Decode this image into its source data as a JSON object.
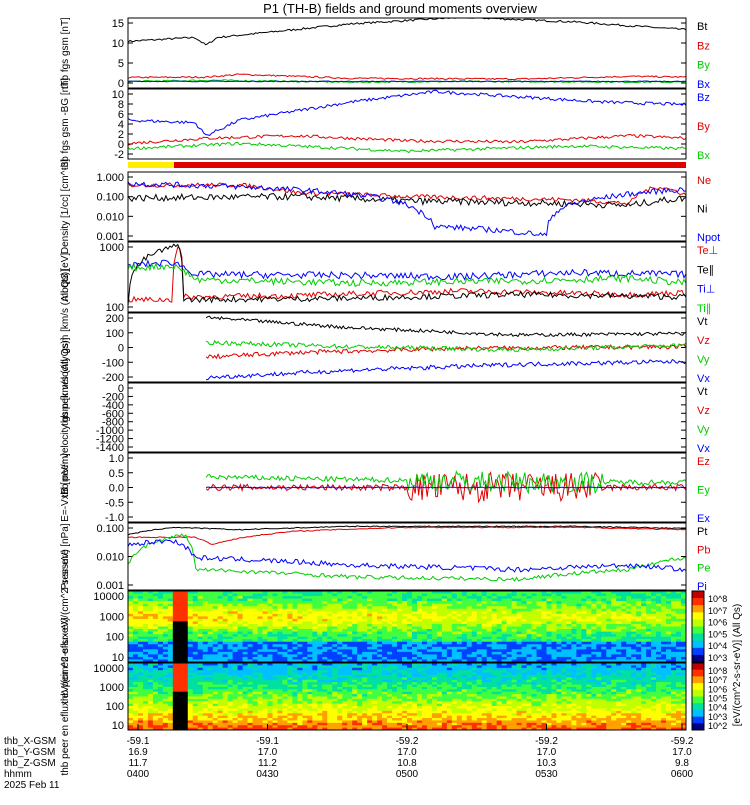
{
  "title": "P1 (TH-B) fields and ground moments overview",
  "colors": {
    "black": "#000000",
    "red": "#e00000",
    "green": "#00cc00",
    "blue": "#0000ff",
    "yellow": "#ffee00"
  },
  "footer": {
    "rows": [
      {
        "label": "thb_X-GSM",
        "values": [
          "-59.1",
          "-59.1",
          "-59.2",
          "-59.2",
          "-59.2"
        ]
      },
      {
        "label": "thb_Y-GSM",
        "values": [
          "16.9",
          "17.0",
          "17.0",
          "17.0",
          "17.0"
        ]
      },
      {
        "label": "thb_Z-GSM",
        "values": [
          "11.7",
          "11.2",
          "10.8",
          "10.3",
          "9.8"
        ]
      },
      {
        "label": "hhmm",
        "values": [
          "0400",
          "0430",
          "0500",
          "0530",
          "0600"
        ]
      }
    ],
    "date": "2025 Feb 11"
  },
  "colorbar": {
    "label": "[eV/(cm^2-s-sr-eV)] (All Qs)",
    "panel1_ticks": [
      "10^8",
      "10^7",
      "10^6",
      "10^5",
      "10^4",
      "10^3"
    ],
    "panel2_ticks": [
      "10^8",
      "10^7",
      "10^6",
      "10^5",
      "10^4",
      "10^3",
      "10^2"
    ]
  },
  "chart_data": [
    {
      "type": "line",
      "ylabel": "thb fgs gsm [nT]",
      "ylim": [
        -2,
        16
      ],
      "yticks": [
        "15",
        "10",
        "5",
        "0"
      ],
      "series": [
        {
          "name": "Bt",
          "color": "#000000",
          "profile": [
            [
              0,
              10
            ],
            [
              0.12,
              11
            ],
            [
              0.14,
              9
            ],
            [
              0.16,
              11
            ],
            [
              0.4,
              14.5
            ],
            [
              0.6,
              16.2
            ],
            [
              0.8,
              15
            ],
            [
              1,
              13
            ]
          ],
          "noise": 0.25
        },
        {
          "name": "Bz",
          "color": "#e00000",
          "profile": [
            [
              0,
              0.7
            ],
            [
              0.14,
              0.8
            ],
            [
              0.2,
              1.5
            ],
            [
              0.4,
              0.5
            ],
            [
              0.7,
              0.3
            ],
            [
              0.9,
              1
            ],
            [
              1,
              0.8
            ]
          ],
          "noise": 0.2
        },
        {
          "name": "By",
          "color": "#00cc00",
          "profile": [
            [
              0,
              -0.3
            ],
            [
              0.15,
              0
            ],
            [
              0.4,
              -0.5
            ],
            [
              0.6,
              -0.3
            ],
            [
              1,
              -0.5
            ]
          ],
          "noise": 0.2
        },
        {
          "name": "Bx",
          "color": "#0000ff",
          "profile": [
            [
              0,
              -0.3
            ],
            [
              1,
              -0.3
            ]
          ],
          "noise": 0.1
        }
      ]
    },
    {
      "type": "line",
      "ylabel": "thb fgs gsm -BG [nT]",
      "ylim": [
        -3,
        10.5
      ],
      "yticks": [
        "10",
        "8",
        "6",
        "4",
        "2",
        "0",
        "-2"
      ],
      "series": [
        {
          "name": "Bz",
          "color": "#0000ff",
          "profile": [
            [
              0,
              4.5
            ],
            [
              0.12,
              4
            ],
            [
              0.14,
              1.5
            ],
            [
              0.2,
              4.5
            ],
            [
              0.4,
              8
            ],
            [
              0.55,
              10
            ],
            [
              0.7,
              9
            ],
            [
              0.85,
              8
            ],
            [
              1,
              7.5
            ]
          ],
          "noise": 0.3
        },
        {
          "name": "By",
          "color": "#e00000",
          "profile": [
            [
              0,
              0
            ],
            [
              0.14,
              1
            ],
            [
              0.3,
              1.5
            ],
            [
              0.5,
              0.5
            ],
            [
              0.7,
              0.3
            ],
            [
              0.9,
              1.5
            ],
            [
              1,
              1
            ]
          ],
          "noise": 0.3
        },
        {
          "name": "Bx",
          "color": "#00cc00",
          "profile": [
            [
              0,
              -1
            ],
            [
              0.2,
              0
            ],
            [
              0.5,
              -1.5
            ],
            [
              0.8,
              -0.5
            ],
            [
              1,
              -1
            ]
          ],
          "noise": 0.3
        }
      ]
    },
    {
      "type": "line",
      "ylabel": "Density [1/cc] [cm^-3]",
      "log": true,
      "ylim": [
        0.0005,
        2.5
      ],
      "yticks": [
        "1.000",
        "0.100",
        "0.010",
        "0.001"
      ],
      "series": [
        {
          "name": "Ne",
          "color": "#e00000",
          "profile": [
            [
              0,
              0.5
            ],
            [
              0.2,
              0.5
            ],
            [
              0.3,
              0.2
            ],
            [
              0.5,
              0.12
            ],
            [
              0.8,
              0.08
            ],
            [
              0.9,
              0.05
            ],
            [
              0.95,
              0.4
            ],
            [
              1,
              0.15
            ]
          ],
          "noise": 0.12
        },
        {
          "name": "Ni",
          "color": "#000000",
          "profile": [
            [
              0,
              0.1
            ],
            [
              0.3,
              0.12
            ],
            [
              0.5,
              0.07
            ],
            [
              0.8,
              0.05
            ],
            [
              0.9,
              0.04
            ],
            [
              1,
              0.1
            ]
          ],
          "noise": 0.18
        },
        {
          "name": "Npot",
          "color": "#0000ff",
          "profile": [
            [
              0,
              0.6
            ],
            [
              0.2,
              0.4
            ],
            [
              0.45,
              0.1
            ],
            [
              0.52,
              0.02
            ],
            [
              0.55,
              0.003
            ],
            [
              0.75,
              0.001
            ],
            [
              0.85,
              0.1
            ],
            [
              1,
              0.3
            ]
          ],
          "noise": 0.15
        }
      ]
    },
    {
      "type": "line",
      "ylabel": "moqt3 [eV]",
      "log": true,
      "ylim": [
        15,
        4000
      ],
      "yticks": [
        "1000",
        "100"
      ],
      "series": [
        {
          "name": "Te⊥",
          "color": "#e00000",
          "profile": [
            [
              0,
              40
            ],
            [
              0.08,
              40
            ],
            [
              0.09,
              3000
            ],
            [
              0.1,
              50
            ],
            [
              0.3,
              55
            ],
            [
              0.6,
              80
            ],
            [
              0.9,
              60
            ],
            [
              1,
              70
            ]
          ],
          "noise": 0.1
        },
        {
          "name": "Te∥",
          "color": "#000000",
          "profile": [
            [
              0,
              30
            ],
            [
              0.09,
              3000
            ],
            [
              0.1,
              40
            ],
            [
              0.4,
              45
            ],
            [
              0.7,
              60
            ],
            [
              1,
              50
            ]
          ],
          "noise": 0.1
        },
        {
          "name": "Ti⊥",
          "color": "#0000ff",
          "profile": [
            [
              0,
              600
            ],
            [
              0.08,
              800
            ],
            [
              0.12,
              300
            ],
            [
              0.4,
              280
            ],
            [
              0.6,
              250
            ],
            [
              0.8,
              350
            ],
            [
              1,
              300
            ]
          ],
          "noise": 0.12
        },
        {
          "name": "Ti∥",
          "color": "#00cc00",
          "profile": [
            [
              0,
              500
            ],
            [
              0.08,
              600
            ],
            [
              0.12,
              200
            ],
            [
              0.4,
              150
            ],
            [
              0.7,
              180
            ],
            [
              0.9,
              220
            ],
            [
              1,
              150
            ]
          ],
          "noise": 0.12
        }
      ]
    },
    {
      "type": "line",
      "ylabel": "thb peir velocity gsm [km/s (All Qs)]",
      "ylim": [
        -220,
        250
      ],
      "yticks": [
        "200",
        "100",
        "0",
        "-100",
        "-200"
      ],
      "series": [
        {
          "name": "Vt",
          "color": "#000000",
          "profile": [
            [
              0.14,
              220
            ],
            [
              0.4,
              150
            ],
            [
              0.7,
              100
            ],
            [
              1,
              110
            ]
          ],
          "noise": 12
        },
        {
          "name": "Vz",
          "color": "#e00000",
          "profile": [
            [
              0.14,
              -50
            ],
            [
              0.3,
              -20
            ],
            [
              0.6,
              10
            ],
            [
              1,
              20
            ]
          ],
          "noise": 15
        },
        {
          "name": "Vy",
          "color": "#00cc00",
          "profile": [
            [
              0.14,
              50
            ],
            [
              0.4,
              20
            ],
            [
              0.7,
              0
            ],
            [
              1,
              30
            ]
          ],
          "noise": 15
        },
        {
          "name": "Vx",
          "color": "#0000ff",
          "profile": [
            [
              0.14,
              -190
            ],
            [
              0.4,
              -140
            ],
            [
              0.7,
              -100
            ],
            [
              1,
              -80
            ]
          ],
          "noise": 15
        }
      ]
    },
    {
      "type": "line",
      "ylabel": "thb peer velocity gsm [km/s (All Qs)]",
      "ylim": [
        -1500,
        100
      ],
      "yticks": [
        "0",
        "-200",
        "-400",
        "-600",
        "-800",
        "-1000",
        "-1200",
        "-1400"
      ],
      "series": [
        {
          "name": "Vt",
          "color": "#000000"
        },
        {
          "name": "Vz",
          "color": "#e00000"
        },
        {
          "name": "Vy",
          "color": "#00cc00"
        },
        {
          "name": "Vx",
          "color": "#0000ff"
        }
      ]
    },
    {
      "type": "line",
      "ylabel": "E=-VxB [mV/m]",
      "ylim": [
        -1.3,
        1.3
      ],
      "yticks": [
        "1.0",
        "0.5",
        "0.0",
        "-0.5",
        "-1.0"
      ],
      "series": [
        {
          "name": "Ez",
          "color": "#e00000",
          "profile": [
            [
              0.14,
              0
            ],
            [
              0.4,
              0
            ],
            [
              0.55,
              0
            ],
            [
              0.8,
              0
            ],
            [
              1,
              0
            ]
          ],
          "noise": 0.12,
          "burst": [
            0.5,
            0.85,
            0.45
          ]
        },
        {
          "name": "Ey",
          "color": "#00cc00",
          "profile": [
            [
              0.14,
              0.4
            ],
            [
              0.4,
              0.3
            ],
            [
              0.7,
              0.2
            ],
            [
              1,
              0.2
            ]
          ],
          "noise": 0.1,
          "burst": [
            0.5,
            0.85,
            0.3
          ]
        },
        {
          "name": "Ex",
          "color": "#0000ff",
          "profile": [
            [
              0.14,
              0
            ],
            [
              1,
              0
            ]
          ],
          "noise": 0.02
        }
      ]
    },
    {
      "type": "line",
      "ylabel": "Pressure [nPa]",
      "log": true,
      "ylim": [
        0.0003,
        0.15
      ],
      "yticks": [
        "0.100",
        "0.010",
        "0.001"
      ],
      "series": [
        {
          "name": "Pt",
          "color": "#000000",
          "profile": [
            [
              0,
              0.05
            ],
            [
              0.08,
              0.1
            ],
            [
              0.2,
              0.08
            ],
            [
              0.4,
              0.11
            ],
            [
              0.8,
              0.11
            ],
            [
              1,
              0.09
            ]
          ],
          "noise": 0.02
        },
        {
          "name": "Pb",
          "color": "#e00000",
          "profile": [
            [
              0,
              0.04
            ],
            [
              0.12,
              0.04
            ],
            [
              0.15,
              0.02
            ],
            [
              0.3,
              0.07
            ],
            [
              0.5,
              0.1
            ],
            [
              0.8,
              0.1
            ],
            [
              1,
              0.08
            ]
          ],
          "noise": 0.02
        },
        {
          "name": "Pe",
          "color": "#00cc00",
          "profile": [
            [
              0,
              0.003
            ],
            [
              0.1,
              0.05
            ],
            [
              0.12,
              0.002
            ],
            [
              0.4,
              0.001
            ],
            [
              0.7,
              0.0008
            ],
            [
              0.9,
              0.002
            ],
            [
              1,
              0.006
            ]
          ],
          "noise": 0.08
        },
        {
          "name": "Pi",
          "color": "#0000ff",
          "profile": [
            [
              0,
              0.02
            ],
            [
              0.08,
              0.03
            ],
            [
              0.12,
              0.006
            ],
            [
              0.4,
              0.003
            ],
            [
              0.7,
              0.002
            ],
            [
              0.9,
              0.003
            ],
            [
              1,
              0.002
            ]
          ],
          "noise": 0.1
        }
      ]
    },
    {
      "type": "heatmap",
      "ylabel": "thb peir en eflux eV/(cm^2-s-sr-eV)",
      "log": true,
      "yticks": [
        "10000",
        "1000",
        "100",
        "10"
      ]
    },
    {
      "type": "heatmap",
      "ylabel": "thb peer en eflux eV/(cm^2-s-sr-eV)",
      "log": true,
      "yticks": [
        "10000",
        "1000",
        "100",
        "10"
      ]
    }
  ]
}
